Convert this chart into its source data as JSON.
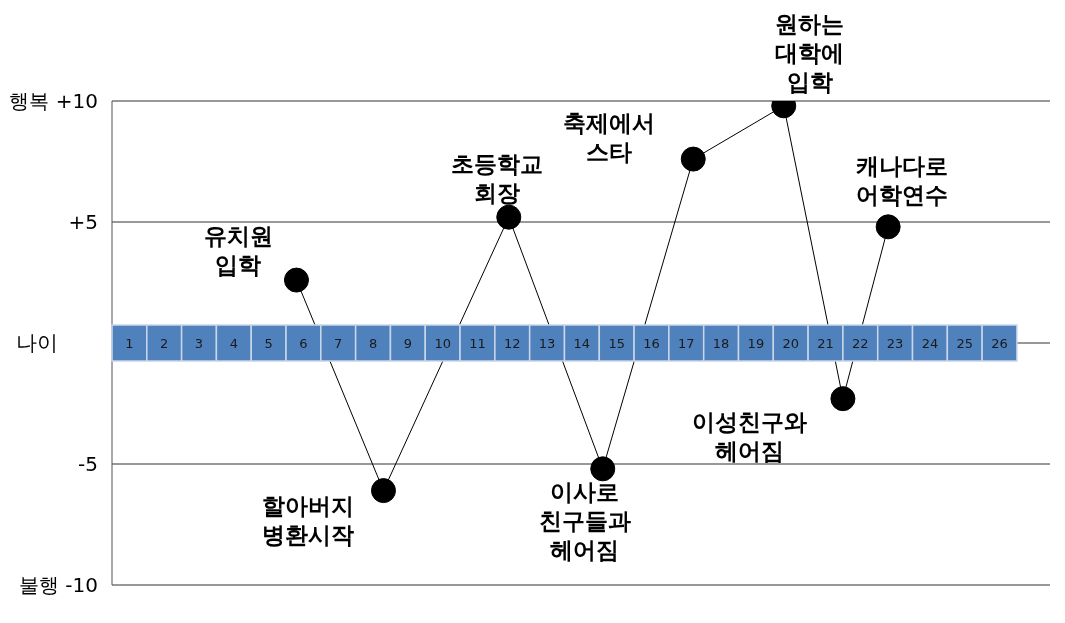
{
  "chart_data": {
    "type": "line",
    "xlabel": "나이",
    "x": [
      5.8,
      8.3,
      11.9,
      14.6,
      17.2,
      19.8,
      21.5,
      22.8
    ],
    "series": [
      {
        "color": "#000000",
        "values": [
          2.6,
          -6.1,
          5.2,
          -5.2,
          7.6,
          9.8,
          -2.3,
          4.8
        ]
      }
    ],
    "xlim": [
      0.5,
      27.45
    ],
    "xticks": [
      1,
      2,
      3,
      4,
      5,
      6,
      7,
      8,
      9,
      10,
      11,
      12,
      13,
      14,
      15,
      16,
      17,
      18,
      19,
      20,
      21,
      22,
      23,
      24,
      25,
      26
    ],
    "ylim": [
      -10,
      10
    ],
    "yticks": [
      {
        "value": 10,
        "label": "행복 +10"
      },
      {
        "value": 5,
        "label": "+5"
      },
      {
        "value": 0,
        "label": null
      },
      {
        "value": -5,
        "label": "-5"
      },
      {
        "value": -10,
        "label": "불행 -10"
      }
    ],
    "grid": "y",
    "marker": "circle",
    "line_style": "solid",
    "annotations": [
      {
        "text": "유치원 입학",
        "x": 5.8,
        "y": 2.6
      },
      {
        "text": "할아버지 병환시작",
        "x": 8.3,
        "y": -6.1
      },
      {
        "text": "초등학교 회장",
        "x": 11.9,
        "y": 5.2
      },
      {
        "text": "이사로 친구들과 헤어짐",
        "x": 14.6,
        "y": -5.2
      },
      {
        "text": "축제에서 스타",
        "x": 17.2,
        "y": 7.6
      },
      {
        "text": "원하는 대학에 입학",
        "x": 19.8,
        "y": 9.8
      },
      {
        "text": "이성친구와 헤어짐",
        "x": 21.5,
        "y": -2.3
      },
      {
        "text": "캐나다로 어학연수",
        "x": 22.8,
        "y": 4.8
      }
    ]
  }
}
